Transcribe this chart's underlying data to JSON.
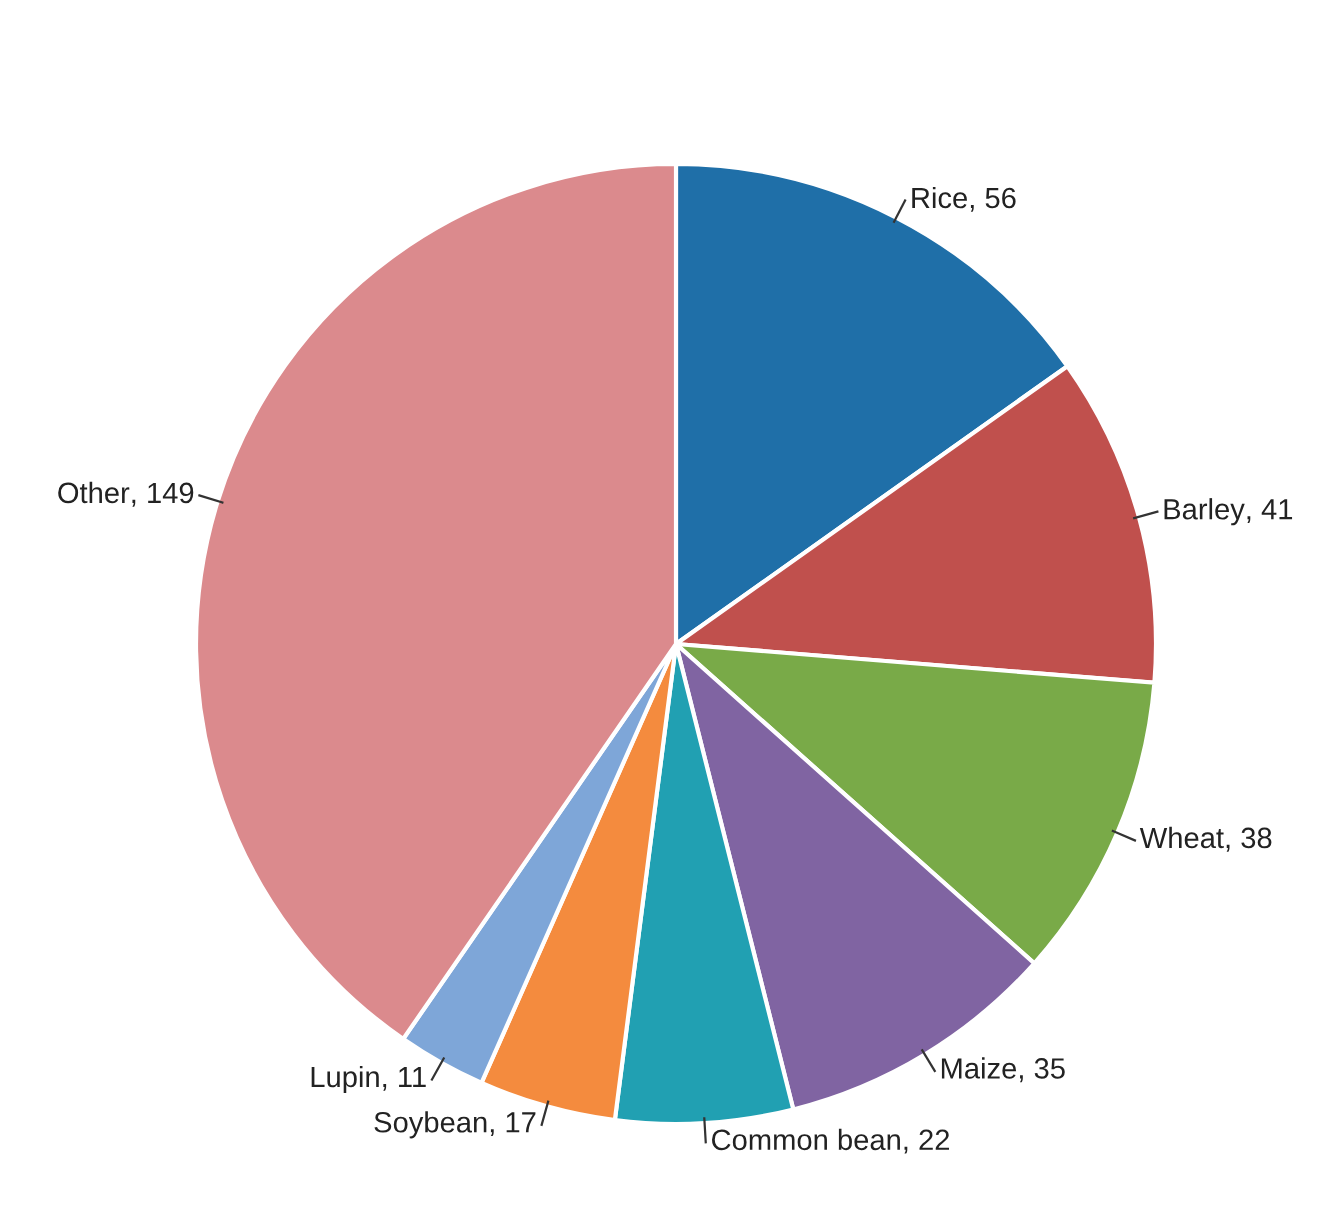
{
  "chart_data": {
    "type": "pie",
    "categories": [
      "Rice",
      "Barley",
      "Wheat",
      "Maize",
      "Common bean",
      "Soybean",
      "Lupin",
      "Other"
    ],
    "values": [
      56,
      41,
      38,
      35,
      22,
      17,
      11,
      149
    ],
    "colors": [
      "#1f6fa8",
      "#c0504d",
      "#79aa48",
      "#8064a2",
      "#21a0b2",
      "#f48b3e",
      "#7ea6d8",
      "#db8a8d"
    ],
    "value_labels": [
      ", 56",
      ", 41",
      ", 38",
      ", 35",
      ", 22",
      ", 17",
      ", 11",
      ", 149"
    ]
  }
}
